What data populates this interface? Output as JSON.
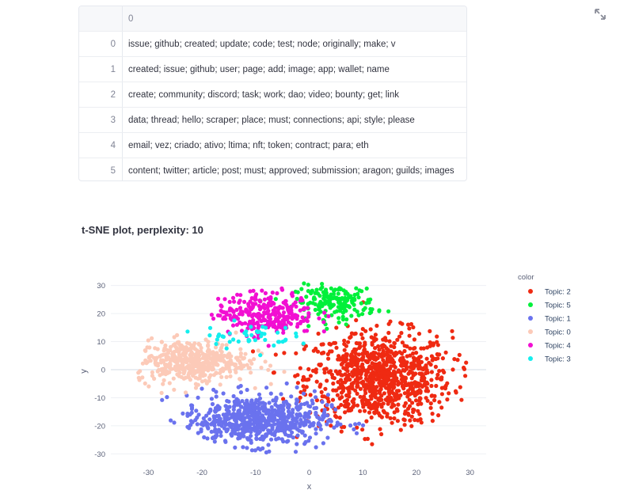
{
  "table": {
    "header": {
      "index": "",
      "col": "0"
    },
    "rows": [
      {
        "index": "0",
        "text": "issue; github; created; update; code; test; node; originally; make; v"
      },
      {
        "index": "1",
        "text": "created; issue; github; user; page; add; image; app; wallet; name"
      },
      {
        "index": "2",
        "text": "create; community; discord; task; work; dao; video; bounty; get; link"
      },
      {
        "index": "3",
        "text": "data; thread; hello; scraper; place; must; connections; api; style; please"
      },
      {
        "index": "4",
        "text": "email; vez; criado; ativo; ltima; nft; token; contract; para; eth"
      },
      {
        "index": "5",
        "text": "content; twitter; article; post; must; approved; submission; aragon; guilds; images"
      }
    ]
  },
  "fullscreen_icon": "expand-icon",
  "plot_title": "t-SNE plot, perplexity: 10",
  "chart_data": {
    "type": "scatter",
    "title": "t-SNE plot, perplexity: 10",
    "xlabel": "x",
    "ylabel": "y",
    "xlim": [
      -37,
      33
    ],
    "ylim": [
      -33,
      33
    ],
    "xticks": [
      -30,
      -20,
      -10,
      0,
      10,
      20,
      30
    ],
    "yticks": [
      30,
      20,
      10,
      0,
      -10,
      -20,
      -30
    ],
    "grid": true,
    "legend_title": "color",
    "legend_position": "right",
    "series": [
      {
        "name": "Topic: 2",
        "color": "#ef2a12",
        "center": [
          13,
          -3
        ],
        "spread": [
          9,
          11
        ],
        "count": 900
      },
      {
        "name": "Topic: 5",
        "color": "#00f03a",
        "center": [
          5,
          24
        ],
        "spread": [
          5,
          4
        ],
        "count": 180
      },
      {
        "name": "Topic: 1",
        "color": "#6a72ee",
        "center": [
          -10,
          -18
        ],
        "spread": [
          9,
          6
        ],
        "count": 650
      },
      {
        "name": "Topic: 0",
        "color": "#fccab8",
        "center": [
          -22,
          3
        ],
        "spread": [
          7,
          5
        ],
        "count": 450
      },
      {
        "name": "Topic: 4",
        "color": "#f20fd2",
        "center": [
          -8,
          20
        ],
        "spread": [
          6,
          5
        ],
        "count": 280
      },
      {
        "name": "Topic: 3",
        "color": "#14eeee",
        "center": [
          -12,
          12
        ],
        "spread": [
          6,
          3
        ],
        "count": 45
      }
    ]
  }
}
